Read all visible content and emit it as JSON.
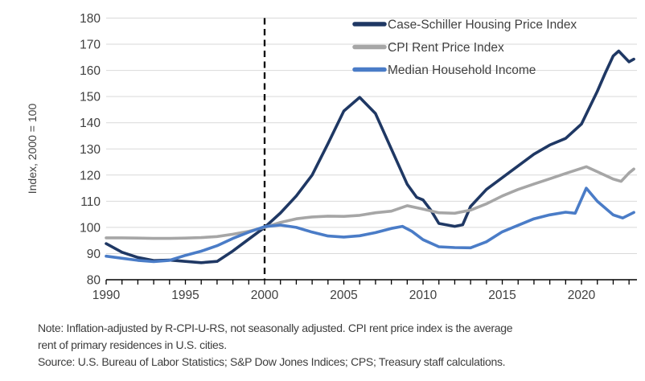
{
  "chart_data": {
    "type": "line",
    "title": "",
    "xlabel": "",
    "ylabel": "Index, 2000 = 100",
    "xlim": [
      1990,
      2023.5
    ],
    "ylim": [
      80,
      180
    ],
    "grid": true,
    "legend_position": "top-right-inside",
    "reference_line_x": 2000,
    "yticks": [
      80,
      90,
      100,
      110,
      120,
      130,
      140,
      150,
      160,
      170,
      180
    ],
    "ytick_labels": [
      "80",
      "90",
      "100",
      "110",
      "120",
      "130",
      "140",
      "150",
      "160",
      "170",
      "180"
    ],
    "xticks_labeled": [
      1990,
      1995,
      2000,
      2005,
      2010,
      2015,
      2020
    ],
    "xtick_labels": [
      "1990",
      "1995",
      "2000",
      "2005",
      "2010",
      "2015",
      "2020"
    ],
    "minor_xtick_start": 1990,
    "minor_xtick_end": 2023,
    "minor_xtick_step": 1,
    "series": [
      {
        "name": "Case-Schiller Housing Price Index",
        "color": "#1F3864",
        "x": [
          1990,
          1991,
          1992,
          1993,
          1994,
          1995,
          1996,
          1997,
          1998,
          1999,
          2000,
          2001,
          2002,
          2003,
          2004,
          2005,
          2006,
          2007,
          2008,
          2009,
          2009.6,
          2010,
          2010.5,
          2011,
          2012,
          2012.5,
          2013,
          2014,
          2015,
          2016,
          2017,
          2018,
          2019,
          2020,
          2021,
          2021.5,
          2022,
          2022.35,
          2023,
          2023.3
        ],
        "y": [
          93.8,
          90.5,
          88.5,
          87.3,
          87.5,
          87,
          86.5,
          87,
          91,
          95.5,
          100,
          105.5,
          112,
          120,
          132,
          144.5,
          149.7,
          143.5,
          130,
          116.5,
          111.5,
          110.5,
          106.5,
          101.5,
          100.4,
          101,
          108,
          114.5,
          119,
          123.5,
          128,
          131.5,
          134,
          139.5,
          152,
          159,
          165.5,
          167.4,
          163.3,
          164.3
        ]
      },
      {
        "name": "CPI Rent Price Index",
        "color": "#A6A6A6",
        "x": [
          1990,
          1991,
          1992,
          1993,
          1994,
          1995,
          1996,
          1997,
          1998,
          1999,
          2000,
          2001,
          2002,
          2003,
          2004,
          2005,
          2006,
          2007,
          2008,
          2009,
          2010,
          2011,
          2012,
          2013,
          2014,
          2015,
          2016,
          2017,
          2018,
          2019,
          2020.3,
          2021,
          2022,
          2022.5,
          2023,
          2023.3
        ],
        "y": [
          96,
          96,
          95.9,
          95.8,
          95.8,
          95.9,
          96.1,
          96.5,
          97.4,
          98.5,
          100,
          101.9,
          103.3,
          104,
          104.3,
          104.2,
          104.6,
          105.6,
          106.2,
          108.3,
          107,
          105.6,
          105.4,
          106.6,
          109,
          112,
          114.5,
          116.6,
          118.6,
          120.6,
          123.2,
          121.3,
          118.5,
          117.6,
          120.8,
          122.3
        ]
      },
      {
        "name": "Median Household Income",
        "color": "#4A7CC7",
        "x": [
          1990,
          1991,
          1992,
          1993,
          1994,
          1995,
          1996,
          1997,
          1998,
          1999,
          2000,
          2001,
          2002,
          2003,
          2004,
          2005,
          2006,
          2007,
          2008,
          2008.7,
          2009.3,
          2010,
          2011,
          2012,
          2013,
          2014,
          2015,
          2016,
          2017,
          2018,
          2019,
          2019.6,
          2020.3,
          2021,
          2022,
          2022.6,
          2023.3
        ],
        "y": [
          89,
          88.2,
          87.4,
          86.9,
          87.4,
          89.3,
          90.9,
          93,
          95.8,
          98.2,
          100.3,
          100.9,
          100,
          98.2,
          96.7,
          96.3,
          96.8,
          98,
          99.6,
          100.4,
          98.5,
          95.3,
          92.6,
          92.3,
          92.2,
          94.5,
          98.3,
          100.8,
          103.3,
          104.8,
          105.8,
          105.4,
          115,
          110,
          104.8,
          103.6,
          105.7
        ]
      }
    ]
  },
  "colors": {
    "background": "#FFFFFF",
    "gridline": "#D9D9D9",
    "axis": "#000000",
    "text": "#404040",
    "reference_line": "#000000"
  },
  "notes": {
    "note_line1": "Note: Inflation-adjusted by R-CPI-U-RS, not seasonally adjusted. CPI rent price index is the average",
    "note_line2": "rent of primary residences in U.S. cities.",
    "source_line": "Source: U.S. Bureau of Labor Statistics; S&P Dow Jones Indices; CPS; Treasury staff calculations."
  }
}
